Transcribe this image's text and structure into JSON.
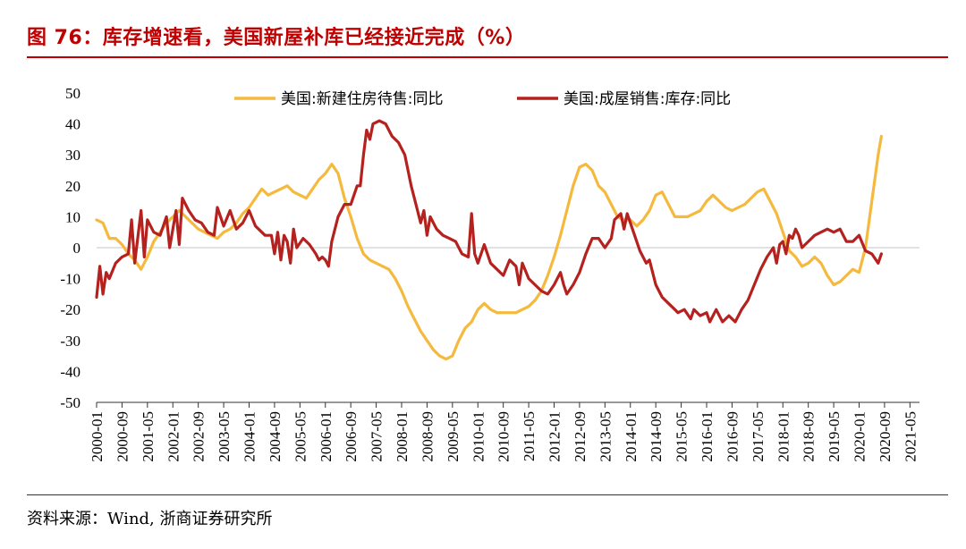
{
  "header": {
    "title": "图 76：库存增速看，美国新屋补库已经接近完成（%）"
  },
  "footer": {
    "source": "资料来源：Wind, 浙商证券研究所"
  },
  "colors": {
    "series1": "#f5b93e",
    "series2": "#b5211e",
    "title": "#c00000"
  },
  "chart_data": {
    "type": "line",
    "title": "",
    "xlabel": "",
    "ylabel": "",
    "ylim": [
      -50,
      50
    ],
    "yticks": [
      "50",
      "40",
      "30",
      "20",
      "10",
      "0",
      "-10",
      "-20",
      "-30",
      "-40",
      "-50"
    ],
    "xticks": [
      "2000-01",
      "2000-09",
      "2001-05",
      "2002-01",
      "2002-09",
      "2003-05",
      "2004-01",
      "2004-09",
      "2005-05",
      "2006-01",
      "2006-09",
      "2007-05",
      "2008-01",
      "2008-09",
      "2009-05",
      "2010-01",
      "2010-09",
      "2011-05",
      "2012-01",
      "2012-09",
      "2013-05",
      "2014-01",
      "2014-09",
      "2015-05",
      "2016-01",
      "2016-09",
      "2017-05",
      "2018-01",
      "2018-09",
      "2019-05",
      "2020-01",
      "2020-09",
      "2021-05"
    ],
    "x_start": "2000-01",
    "x_end": "2021-08",
    "series": [
      {
        "name": "美国:新建住房待售:同比",
        "points": [
          [
            0,
            9
          ],
          [
            2,
            8
          ],
          [
            4,
            3
          ],
          [
            6,
            3
          ],
          [
            8,
            1
          ],
          [
            10,
            -2
          ],
          [
            12,
            -4
          ],
          [
            14,
            -7
          ],
          [
            16,
            -3
          ],
          [
            18,
            2
          ],
          [
            20,
            5
          ],
          [
            22,
            8
          ],
          [
            24,
            10
          ],
          [
            26,
            12
          ],
          [
            28,
            10
          ],
          [
            30,
            8
          ],
          [
            32,
            6
          ],
          [
            34,
            5
          ],
          [
            36,
            4
          ],
          [
            38,
            3
          ],
          [
            40,
            5
          ],
          [
            42,
            6
          ],
          [
            44,
            8
          ],
          [
            46,
            11
          ],
          [
            48,
            13
          ],
          [
            50,
            16
          ],
          [
            52,
            19
          ],
          [
            54,
            17
          ],
          [
            56,
            18
          ],
          [
            58,
            19
          ],
          [
            60,
            20
          ],
          [
            62,
            18
          ],
          [
            64,
            17
          ],
          [
            66,
            16
          ],
          [
            68,
            19
          ],
          [
            70,
            22
          ],
          [
            72,
            24
          ],
          [
            74,
            27
          ],
          [
            76,
            24
          ],
          [
            78,
            16
          ],
          [
            80,
            10
          ],
          [
            82,
            3
          ],
          [
            84,
            -2
          ],
          [
            86,
            -4
          ],
          [
            88,
            -5
          ],
          [
            90,
            -6
          ],
          [
            92,
            -7
          ],
          [
            94,
            -10
          ],
          [
            96,
            -14
          ],
          [
            98,
            -19
          ],
          [
            100,
            -23
          ],
          [
            102,
            -27
          ],
          [
            104,
            -30
          ],
          [
            106,
            -33
          ],
          [
            108,
            -35
          ],
          [
            110,
            -36
          ],
          [
            112,
            -35
          ],
          [
            114,
            -30
          ],
          [
            116,
            -26
          ],
          [
            118,
            -24
          ],
          [
            120,
            -20
          ],
          [
            122,
            -18
          ],
          [
            124,
            -20
          ],
          [
            126,
            -21
          ],
          [
            128,
            -21
          ],
          [
            130,
            -21
          ],
          [
            132,
            -21
          ],
          [
            134,
            -20
          ],
          [
            136,
            -19
          ],
          [
            138,
            -17
          ],
          [
            140,
            -14
          ],
          [
            142,
            -9
          ],
          [
            144,
            -3
          ],
          [
            146,
            4
          ],
          [
            148,
            12
          ],
          [
            150,
            20
          ],
          [
            152,
            26
          ],
          [
            154,
            27
          ],
          [
            156,
            25
          ],
          [
            158,
            20
          ],
          [
            160,
            18
          ],
          [
            162,
            14
          ],
          [
            164,
            10
          ],
          [
            166,
            9
          ],
          [
            168,
            9
          ],
          [
            170,
            7
          ],
          [
            172,
            9
          ],
          [
            174,
            12
          ],
          [
            176,
            17
          ],
          [
            178,
            18
          ],
          [
            180,
            14
          ],
          [
            182,
            10
          ],
          [
            184,
            10
          ],
          [
            186,
            10
          ],
          [
            188,
            11
          ],
          [
            190,
            12
          ],
          [
            192,
            15
          ],
          [
            194,
            17
          ],
          [
            196,
            15
          ],
          [
            198,
            13
          ],
          [
            200,
            12
          ],
          [
            202,
            13
          ],
          [
            204,
            14
          ],
          [
            206,
            16
          ],
          [
            208,
            18
          ],
          [
            210,
            19
          ],
          [
            212,
            15
          ],
          [
            214,
            11
          ],
          [
            216,
            5
          ],
          [
            218,
            -1
          ],
          [
            220,
            -3
          ],
          [
            222,
            -6
          ],
          [
            224,
            -5
          ],
          [
            226,
            -3
          ],
          [
            228,
            -5
          ],
          [
            230,
            -9
          ],
          [
            232,
            -12
          ],
          [
            234,
            -11
          ],
          [
            236,
            -9
          ],
          [
            238,
            -7
          ],
          [
            240,
            -8
          ],
          [
            242,
            0
          ],
          [
            244,
            15
          ],
          [
            246,
            30
          ],
          [
            247,
            36
          ]
        ]
      },
      {
        "name": "美国:成屋销售:库存:同比",
        "points": [
          [
            0,
            -16
          ],
          [
            1,
            -6
          ],
          [
            2,
            -15
          ],
          [
            3,
            -8
          ],
          [
            4,
            -10
          ],
          [
            6,
            -5
          ],
          [
            8,
            -3
          ],
          [
            10,
            -2
          ],
          [
            11,
            9
          ],
          [
            12,
            -5
          ],
          [
            14,
            12
          ],
          [
            15,
            -3
          ],
          [
            16,
            9
          ],
          [
            18,
            5
          ],
          [
            20,
            4
          ],
          [
            22,
            10
          ],
          [
            23,
            0
          ],
          [
            25,
            12
          ],
          [
            26,
            1
          ],
          [
            27,
            16
          ],
          [
            29,
            12
          ],
          [
            31,
            9
          ],
          [
            33,
            8
          ],
          [
            35,
            5
          ],
          [
            37,
            4
          ],
          [
            38,
            13
          ],
          [
            40,
            7
          ],
          [
            42,
            12
          ],
          [
            44,
            6
          ],
          [
            46,
            8
          ],
          [
            48,
            12
          ],
          [
            50,
            7
          ],
          [
            52,
            5
          ],
          [
            53,
            4
          ],
          [
            55,
            4
          ],
          [
            56,
            -2
          ],
          [
            57,
            5
          ],
          [
            58,
            -4
          ],
          [
            59,
            4
          ],
          [
            60,
            2
          ],
          [
            61,
            -5
          ],
          [
            62,
            6
          ],
          [
            63,
            0
          ],
          [
            65,
            3
          ],
          [
            67,
            1
          ],
          [
            69,
            -2
          ],
          [
            70,
            -4
          ],
          [
            71,
            -3
          ],
          [
            72,
            -4
          ],
          [
            73,
            -6
          ],
          [
            74,
            2
          ],
          [
            76,
            10
          ],
          [
            78,
            14
          ],
          [
            80,
            14
          ],
          [
            82,
            20
          ],
          [
            83,
            20
          ],
          [
            84,
            30
          ],
          [
            85,
            38
          ],
          [
            86,
            35
          ],
          [
            87,
            40
          ],
          [
            89,
            41
          ],
          [
            91,
            40
          ],
          [
            93,
            36
          ],
          [
            95,
            34
          ],
          [
            97,
            30
          ],
          [
            99,
            20
          ],
          [
            101,
            12
          ],
          [
            102,
            8
          ],
          [
            103,
            12
          ],
          [
            104,
            4
          ],
          [
            105,
            10
          ],
          [
            107,
            6
          ],
          [
            109,
            4
          ],
          [
            111,
            3
          ],
          [
            113,
            2
          ],
          [
            115,
            -2
          ],
          [
            117,
            -3
          ],
          [
            118,
            11
          ],
          [
            119,
            -2
          ],
          [
            120,
            -5
          ],
          [
            122,
            1
          ],
          [
            124,
            -5
          ],
          [
            126,
            -7
          ],
          [
            128,
            -9
          ],
          [
            130,
            -4
          ],
          [
            132,
            -6
          ],
          [
            133,
            -12
          ],
          [
            134,
            -5
          ],
          [
            136,
            -10
          ],
          [
            138,
            -12
          ],
          [
            140,
            -14
          ],
          [
            142,
            -15
          ],
          [
            144,
            -12
          ],
          [
            146,
            -8
          ],
          [
            147,
            -12
          ],
          [
            148,
            -15
          ],
          [
            150,
            -12
          ],
          [
            152,
            -8
          ],
          [
            154,
            -2
          ],
          [
            156,
            3
          ],
          [
            158,
            3
          ],
          [
            160,
            0
          ],
          [
            162,
            3
          ],
          [
            163,
            9
          ],
          [
            165,
            11
          ],
          [
            166,
            6
          ],
          [
            167,
            11
          ],
          [
            169,
            5
          ],
          [
            171,
            -1
          ],
          [
            173,
            -5
          ],
          [
            174,
            -4
          ],
          [
            176,
            -12
          ],
          [
            178,
            -16
          ],
          [
            180,
            -18
          ],
          [
            182,
            -20
          ],
          [
            183,
            -21
          ],
          [
            185,
            -20
          ],
          [
            187,
            -23
          ],
          [
            188,
            -20
          ],
          [
            190,
            -22
          ],
          [
            192,
            -21
          ],
          [
            193,
            -24
          ],
          [
            195,
            -20
          ],
          [
            197,
            -24
          ],
          [
            199,
            -22
          ],
          [
            201,
            -24
          ],
          [
            203,
            -20
          ],
          [
            205,
            -17
          ],
          [
            207,
            -12
          ],
          [
            209,
            -7
          ],
          [
            211,
            -3
          ],
          [
            213,
            0
          ],
          [
            214,
            -5
          ],
          [
            215,
            1
          ],
          [
            216,
            2
          ],
          [
            217,
            -2
          ],
          [
            218,
            4
          ],
          [
            219,
            3
          ],
          [
            220,
            6
          ],
          [
            221,
            4
          ],
          [
            222,
            0
          ],
          [
            224,
            2
          ],
          [
            226,
            4
          ],
          [
            228,
            5
          ],
          [
            230,
            6
          ],
          [
            232,
            5
          ],
          [
            234,
            6
          ],
          [
            236,
            2
          ],
          [
            238,
            2
          ],
          [
            240,
            4
          ],
          [
            242,
            -1
          ],
          [
            244,
            -2
          ],
          [
            246,
            -5
          ],
          [
            247,
            -2
          ]
        ]
      }
    ]
  }
}
